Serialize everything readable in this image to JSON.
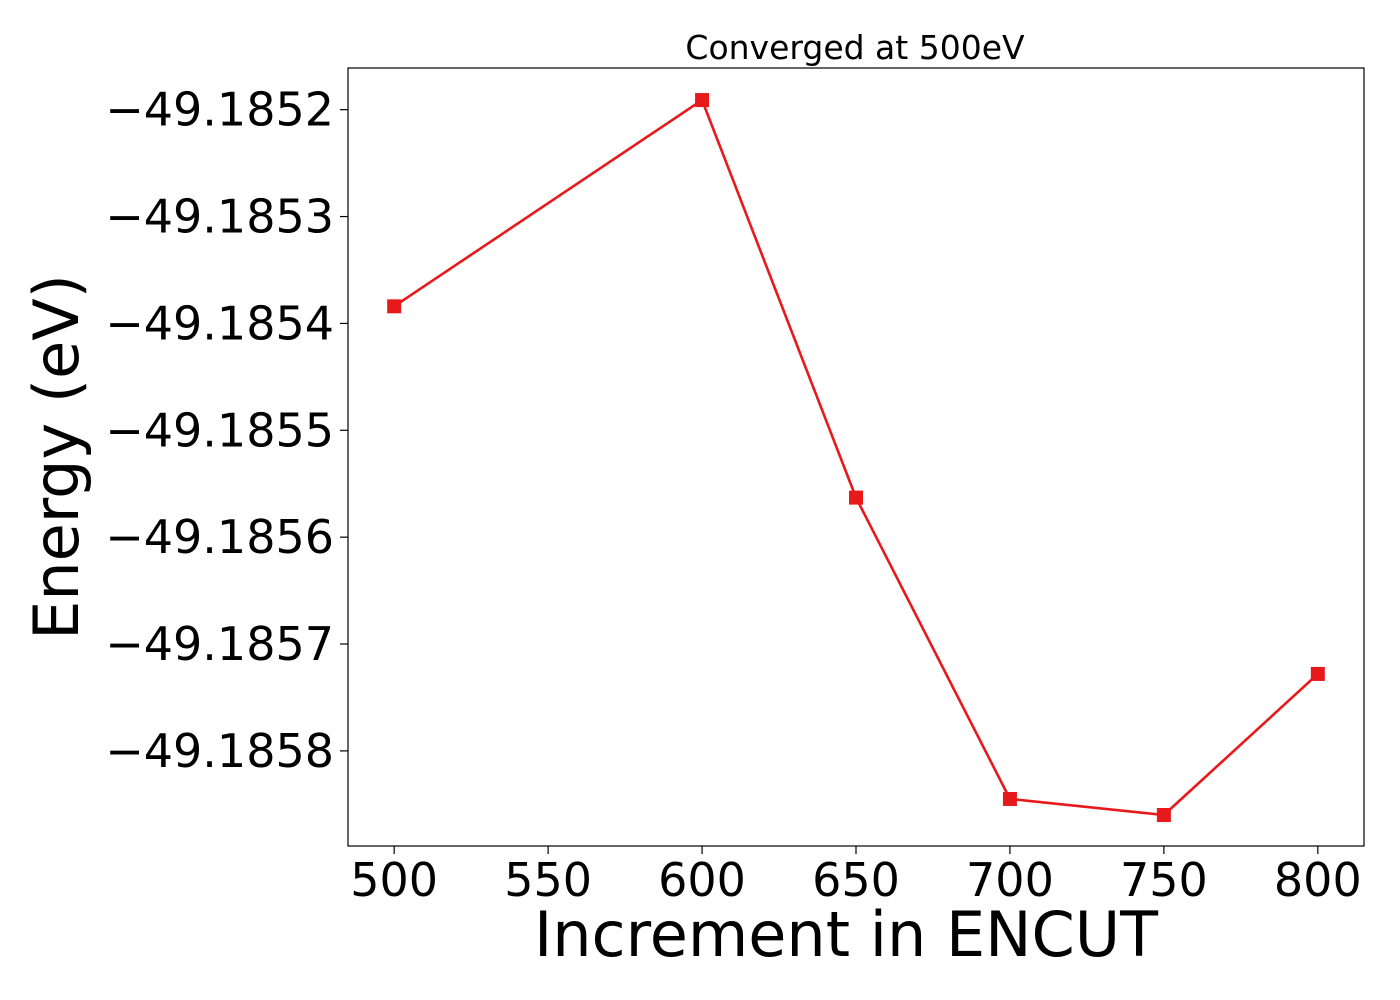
{
  "chart_data": {
    "type": "line",
    "title": "Converged at 500eV",
    "xlabel": "Increment in ENCUT",
    "ylabel": "Energy (eV)",
    "x": [
      500,
      600,
      650,
      700,
      750,
      800
    ],
    "series": [
      {
        "values": [
          -49.185384,
          -49.185191,
          -49.185563,
          -49.185845,
          -49.18586,
          -49.185728
        ],
        "color": "#e8191b",
        "marker": "square"
      }
    ],
    "xticks": [
      500,
      550,
      600,
      650,
      700,
      750,
      800
    ],
    "xtick_labels": [
      "500",
      "550",
      "600",
      "650",
      "700",
      "750",
      "800"
    ],
    "yticks": [
      -49.1852,
      -49.1853,
      -49.1854,
      -49.1855,
      -49.1856,
      -49.1857,
      -49.1858
    ],
    "ytick_labels": [
      "−49.1852",
      "−49.1853",
      "−49.1854",
      "−49.1855",
      "−49.1856",
      "−49.1857",
      "−49.1858"
    ],
    "xlim": [
      485,
      815
    ],
    "ylim": [
      -49.185889,
      -49.185161
    ],
    "grid": false,
    "legend": "none"
  }
}
